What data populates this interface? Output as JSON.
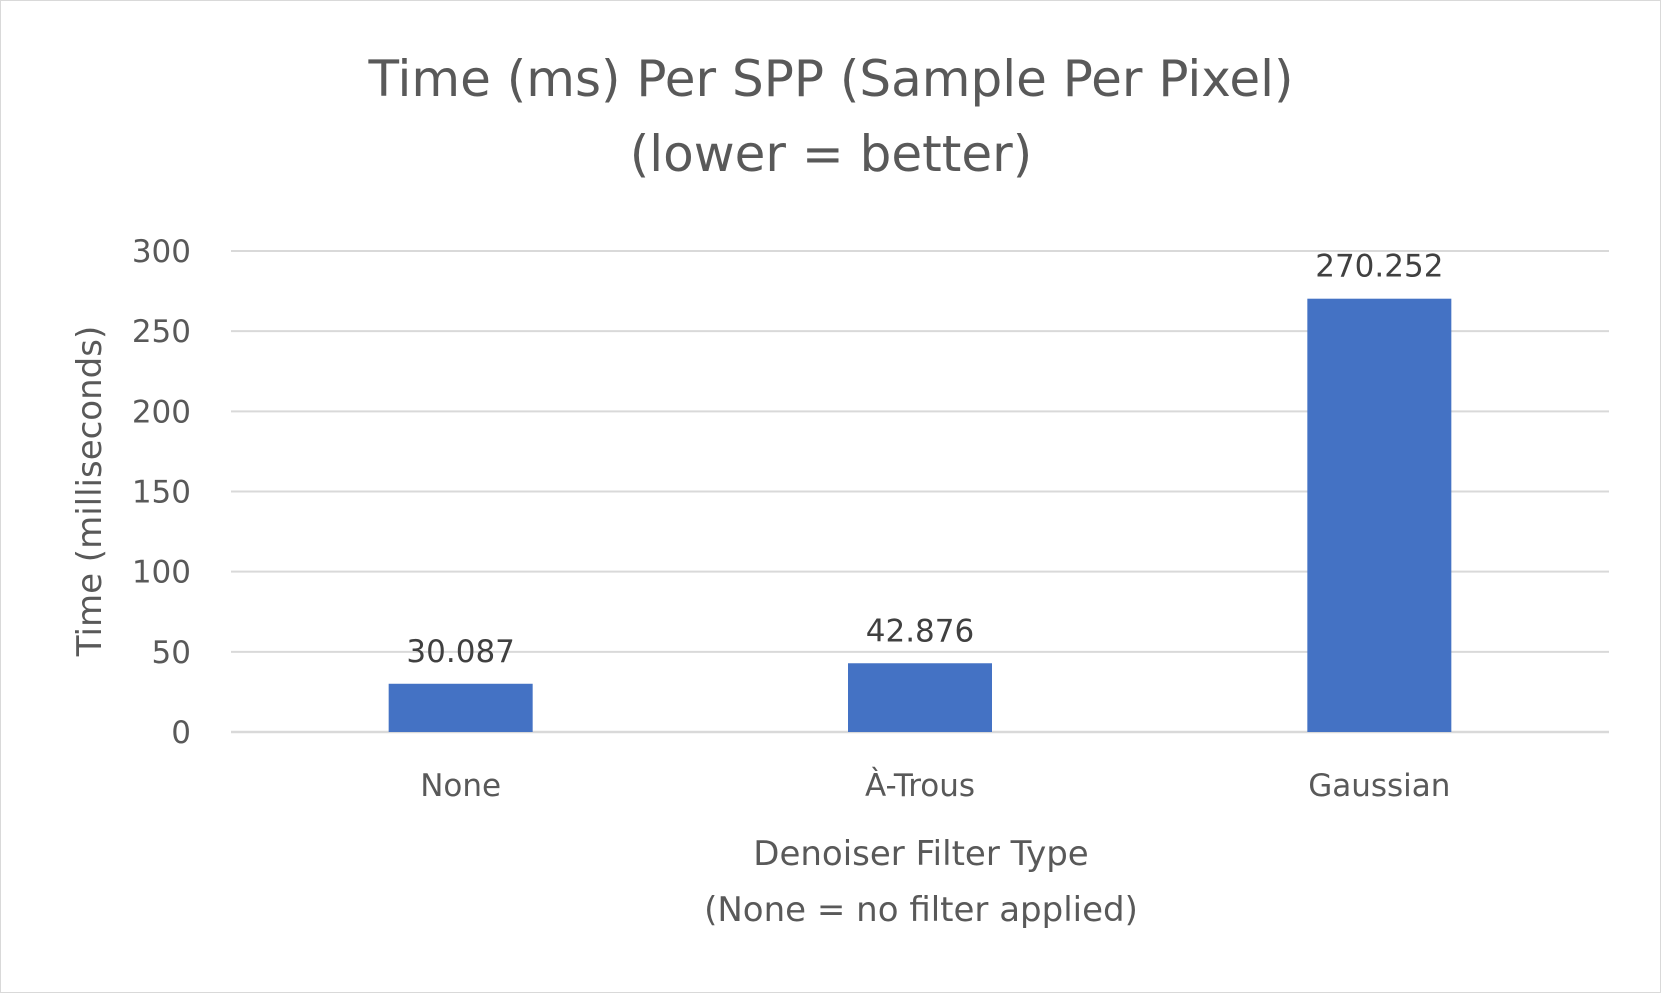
{
  "chart_data": {
    "type": "bar",
    "title_lines": [
      "Time (ms) Per SPP (Sample Per Pixel)",
      "(lower = better)"
    ],
    "xlabel_lines": [
      "Denoiser Filter Type",
      "(None = no filter applied)"
    ],
    "ylabel": "Time (milliseconds)",
    "categories": [
      "None",
      "À-Trous",
      "Gaussian"
    ],
    "values": [
      30.087,
      42.876,
      270.252
    ],
    "data_labels": [
      "30.087",
      "42.876",
      "270.252"
    ],
    "ylim": [
      0,
      300
    ],
    "yticks": [
      0,
      50,
      100,
      150,
      200,
      250,
      300
    ],
    "grid": true,
    "legend": "none",
    "bar_color": "#4472C4"
  }
}
